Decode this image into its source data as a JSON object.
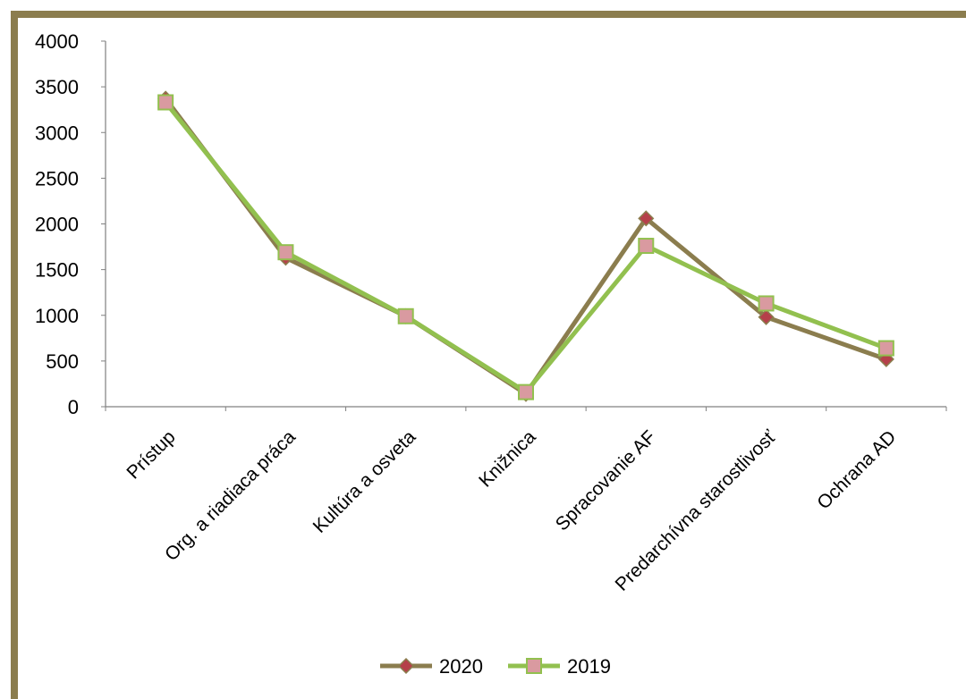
{
  "chart_data": {
    "type": "line",
    "categories": [
      "Prístup",
      "Org. a riadiaca práca",
      "Kultúra a osveta",
      "Knižnica",
      "Spracovanie AF",
      "Predarchívna starostlivosť",
      "Ochrana AD"
    ],
    "series": [
      {
        "name": "2020",
        "values": [
          3370,
          1630,
          990,
          140,
          2060,
          980,
          520
        ],
        "color": "#8b7d4e",
        "marker_color": "#b5404a",
        "marker": "diamond"
      },
      {
        "name": "2019",
        "values": [
          3330,
          1690,
          990,
          160,
          1760,
          1130,
          640
        ],
        "color": "#92c04f",
        "marker_color": "#d99aa0",
        "marker": "square"
      }
    ],
    "ylim": [
      0,
      4000
    ],
    "yticks": [
      "0",
      "500",
      "1000",
      "1500",
      "2000",
      "2500",
      "3000",
      "3500",
      "4000"
    ],
    "grid": false,
    "legend": "bottom",
    "frame_color": "#8b7d4e"
  }
}
